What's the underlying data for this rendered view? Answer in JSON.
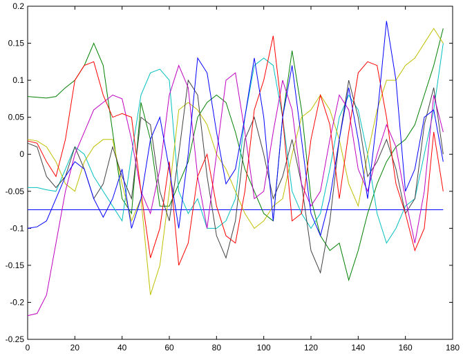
{
  "chart_data": {
    "type": "line",
    "x": [
      0,
      4,
      8,
      12,
      16,
      20,
      24,
      28,
      32,
      36,
      40,
      44,
      48,
      52,
      56,
      60,
      64,
      68,
      72,
      76,
      80,
      84,
      88,
      92,
      96,
      100,
      104,
      108,
      112,
      116,
      120,
      124,
      128,
      132,
      136,
      140,
      144,
      148,
      152,
      156,
      160,
      164,
      168,
      172,
      176
    ],
    "xlim": [
      0,
      180
    ],
    "xticks": [
      0,
      20,
      40,
      60,
      80,
      100,
      120,
      140,
      160,
      180
    ],
    "ylim": [
      -0.25,
      0.2
    ],
    "yticks": [
      -0.25,
      -0.2,
      -0.15,
      -0.1,
      -0.05,
      0,
      0.05,
      0.1,
      0.15,
      0.2
    ],
    "grid": false,
    "series": [
      {
        "color": "#0000ff",
        "values": [
          -0.075,
          -0.075,
          -0.075,
          -0.075,
          -0.075,
          -0.075,
          -0.075,
          -0.075,
          -0.075,
          -0.075,
          -0.075,
          -0.075,
          -0.075,
          -0.075,
          -0.075,
          -0.075,
          -0.075,
          -0.075,
          -0.075,
          -0.075,
          -0.075,
          -0.075,
          -0.075,
          -0.075,
          -0.075,
          -0.075,
          -0.075,
          -0.075,
          -0.075,
          -0.075,
          -0.075,
          -0.075,
          -0.075,
          -0.075,
          -0.075,
          -0.075,
          -0.075,
          -0.075,
          -0.075,
          -0.075,
          -0.075,
          -0.075,
          -0.075,
          -0.075,
          -0.075
        ]
      },
      {
        "color": "#008000",
        "values": [
          0.078,
          0.077,
          0.076,
          0.078,
          0.09,
          0.1,
          0.12,
          0.15,
          0.12,
          0.03,
          -0.06,
          -0.08,
          0.07,
          0.02,
          -0.07,
          -0.07,
          -0.04,
          -0.01,
          0.05,
          0.07,
          0.08,
          0.07,
          0.03,
          -0.02,
          -0.05,
          -0.08,
          -0.09,
          0.05,
          0.14,
          0.06,
          -0.06,
          -0.11,
          -0.13,
          -0.12,
          -0.17,
          -0.13,
          -0.08,
          -0.04,
          -0.01,
          0.01,
          0.02,
          0.04,
          0.08,
          0.12,
          0.17
        ]
      },
      {
        "color": "#00bfbf",
        "values": [
          -0.045,
          -0.045,
          -0.048,
          -0.05,
          -0.02,
          0.01,
          0.0,
          -0.03,
          -0.05,
          -0.07,
          -0.09,
          0.0,
          0.08,
          0.11,
          0.115,
          0.1,
          -0.05,
          -0.08,
          -0.06,
          -0.1,
          -0.1,
          -0.09,
          -0.06,
          0.05,
          0.12,
          0.13,
          0.12,
          0.05,
          -0.05,
          -0.08,
          -0.1,
          -0.08,
          -0.02,
          0.05,
          0.08,
          0.06,
          0.0,
          -0.08,
          -0.12,
          -0.1,
          -0.07,
          -0.06,
          0.0,
          0.06,
          0.15
        ]
      },
      {
        "color": "#bfbf00",
        "values": [
          0.02,
          0.018,
          0.01,
          -0.01,
          -0.04,
          -0.05,
          -0.01,
          0.01,
          0.02,
          0.02,
          -0.04,
          -0.09,
          -0.06,
          -0.19,
          -0.15,
          -0.05,
          0.06,
          0.07,
          0.06,
          0.04,
          0.0,
          -0.02,
          -0.05,
          -0.08,
          -0.1,
          -0.09,
          -0.07,
          -0.06,
          0.0,
          0.05,
          0.06,
          0.08,
          0.06,
          0.02,
          -0.04,
          -0.07,
          0.0,
          0.06,
          0.1,
          0.1,
          0.12,
          0.13,
          0.15,
          0.17,
          0.15
        ]
      },
      {
        "color": "#404040",
        "values": [
          0.015,
          0.01,
          -0.03,
          -0.045,
          -0.03,
          0.01,
          -0.02,
          -0.06,
          -0.04,
          0.01,
          -0.03,
          -0.06,
          0.05,
          0.04,
          -0.05,
          -0.09,
          0.0,
          0.1,
          0.08,
          -0.03,
          -0.11,
          -0.14,
          -0.09,
          0.02,
          0.05,
          0.0,
          -0.06,
          -0.03,
          0.02,
          -0.04,
          -0.13,
          -0.16,
          -0.09,
          0.02,
          0.1,
          0.05,
          -0.03,
          -0.01,
          0.02,
          -0.02,
          -0.08,
          -0.06,
          0.04,
          0.09,
          0.0
        ]
      },
      {
        "color": "#bf00bf",
        "values": [
          -0.218,
          -0.215,
          -0.19,
          -0.12,
          -0.05,
          0.0,
          0.03,
          0.06,
          0.07,
          0.08,
          0.075,
          0.02,
          -0.05,
          -0.08,
          -0.02,
          0.08,
          0.12,
          0.09,
          -0.03,
          -0.1,
          0.0,
          0.1,
          0.11,
          0.03,
          -0.06,
          -0.05,
          0.03,
          0.1,
          0.06,
          -0.04,
          -0.07,
          -0.05,
          0.02,
          0.08,
          0.06,
          -0.02,
          -0.05,
          0.0,
          0.04,
          0.01,
          -0.06,
          -0.12,
          -0.05,
          0.08,
          0.03
        ]
      },
      {
        "color": "#ff0000",
        "values": [
          0.018,
          0.015,
          -0.01,
          -0.03,
          0.02,
          0.1,
          0.12,
          0.125,
          0.08,
          0.05,
          0.055,
          0.05,
          -0.05,
          -0.14,
          -0.1,
          -0.01,
          -0.15,
          -0.12,
          -0.03,
          0.0,
          -0.07,
          -0.11,
          -0.12,
          -0.05,
          0.06,
          0.1,
          0.16,
          0.05,
          -0.09,
          -0.08,
          0.02,
          0.08,
          0.04,
          -0.06,
          0.03,
          0.11,
          0.125,
          0.12,
          0.05,
          -0.04,
          -0.08,
          -0.13,
          -0.1,
          0.03,
          -0.05
        ]
      },
      {
        "color": "#0000ff",
        "values": [
          -0.1,
          -0.098,
          -0.09,
          -0.06,
          -0.03,
          -0.01,
          -0.02,
          -0.06,
          -0.085,
          -0.06,
          -0.02,
          -0.1,
          -0.06,
          0.02,
          0.05,
          -0.02,
          -0.1,
          0.0,
          0.13,
          0.11,
          0.03,
          -0.04,
          -0.02,
          0.05,
          0.13,
          0.05,
          -0.09,
          0.05,
          0.12,
          0.02,
          -0.08,
          -0.11,
          -0.06,
          0.02,
          0.09,
          0.02,
          -0.06,
          0.05,
          0.18,
          0.1,
          -0.05,
          -0.02,
          0.05,
          0.06,
          -0.01
        ]
      }
    ]
  }
}
